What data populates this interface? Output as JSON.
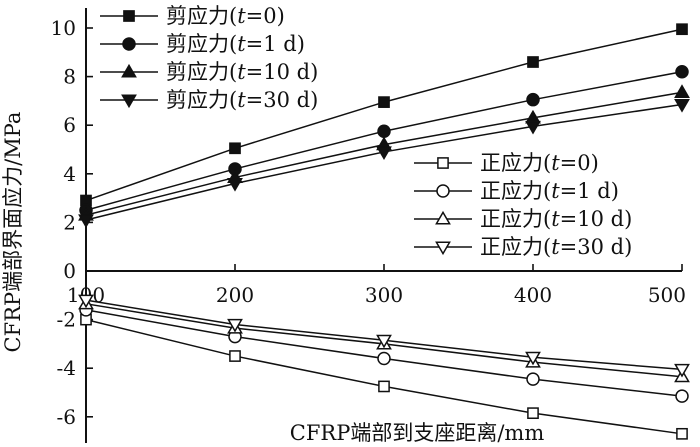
{
  "chart_data": {
    "type": "line",
    "xlabel": "CFRP端部到支座距离/mm",
    "ylabel": "CFRP端部界面应力/MPa",
    "xlim": [
      100,
      500
    ],
    "ylim": [
      -7,
      10.5
    ],
    "x_ticks": [
      "100",
      "200",
      "300",
      "400",
      "500"
    ],
    "y_ticks": [
      "-6",
      "-4",
      "-2",
      "0",
      "2",
      "4",
      "6",
      "8",
      "10"
    ],
    "grid": false,
    "x": [
      100,
      200,
      300,
      400,
      500
    ],
    "series": [
      {
        "name": "剪应力(t=0)",
        "name_prefix": "剪应力(",
        "name_var": "t",
        "name_suffix": "=0)",
        "values": [
          2.9,
          5.05,
          6.95,
          8.6,
          9.95
        ],
        "marker": "square-filled",
        "group": "left"
      },
      {
        "name": "剪应力(t=1 d)",
        "name_prefix": "剪应力(",
        "name_var": "t",
        "name_suffix": "=1 d)",
        "values": [
          2.5,
          4.2,
          5.75,
          7.05,
          8.2
        ],
        "marker": "circle-filled",
        "group": "left"
      },
      {
        "name": "剪应力(t=10 d)",
        "name_prefix": "剪应力(",
        "name_var": "t",
        "name_suffix": "=10 d)",
        "values": [
          2.3,
          3.85,
          5.2,
          6.3,
          7.35
        ],
        "marker": "triangle-up-filled",
        "group": "left"
      },
      {
        "name": "剪应力(t=30 d)",
        "name_prefix": "剪应力(",
        "name_var": "t",
        "name_suffix": "=30 d)",
        "values": [
          2.1,
          3.6,
          4.9,
          5.95,
          6.85
        ],
        "marker": "triangle-down-filled",
        "group": "left"
      },
      {
        "name": "正应力(t=0)",
        "name_prefix": "正应力(",
        "name_var": "t",
        "name_suffix": "=0)",
        "values": [
          -2.0,
          -3.5,
          -4.75,
          -5.85,
          -6.7
        ],
        "marker": "square-open",
        "group": "right"
      },
      {
        "name": "正应力(t=1 d)",
        "name_prefix": "正应力(",
        "name_var": "t",
        "name_suffix": "=1 d)",
        "values": [
          -1.6,
          -2.7,
          -3.6,
          -4.45,
          -5.15
        ],
        "marker": "circle-open",
        "group": "right"
      },
      {
        "name": "正应力(t=10 d)",
        "name_prefix": "正应力(",
        "name_var": "t",
        "name_suffix": "=10 d)",
        "values": [
          -1.35,
          -2.35,
          -3.0,
          -3.75,
          -4.35
        ],
        "marker": "triangle-up-open",
        "group": "right"
      },
      {
        "name": "正应力(t=30 d)",
        "name_prefix": "正应力(",
        "name_var": "t",
        "name_suffix": "=30 d)",
        "values": [
          -1.2,
          -2.2,
          -2.85,
          -3.55,
          -4.05
        ],
        "marker": "triangle-down-open",
        "group": "right"
      }
    ],
    "line_color": "#111111"
  }
}
